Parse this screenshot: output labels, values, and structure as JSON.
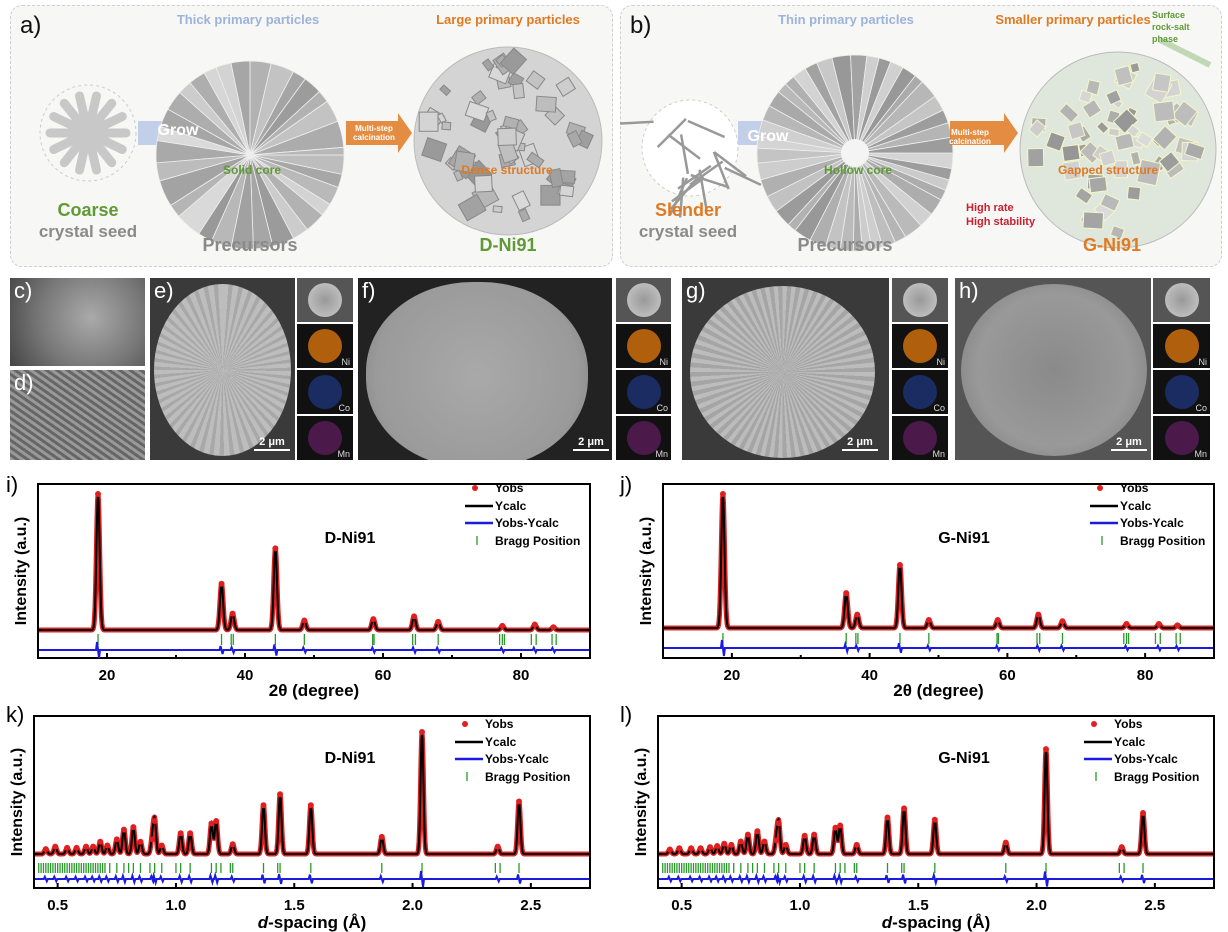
{
  "panel_a": {
    "label": "a)",
    "header_left": "Thick primary particles",
    "header_right": "Large primary particles",
    "grow": "Grow",
    "calcination": "Multi-step calcination",
    "core": "Solid core",
    "structure": "Dense structure",
    "seed_adj": "Coarse",
    "seed_noun": "crystal seed",
    "precursors": "Precursors",
    "product": "D-Ni91"
  },
  "panel_b": {
    "label": "b)",
    "header_left": "Thin primary particles",
    "header_right": "Smaller primary particles",
    "surface_note": "Surface rock-salt phase",
    "grow": "Grow",
    "calcination": "Multi-step calcination",
    "core": "Hollow core",
    "structure": "Gapped structure",
    "perf1": "High rate",
    "perf2": "High stability",
    "seed_adj": "Slender",
    "seed_noun": "crystal seed",
    "precursors": "Precursors",
    "product": "G-Ni91"
  },
  "colors": {
    "green": "#5f9a35",
    "orange": "#e07a22",
    "blue_light": "#9db3da",
    "gray": "#8a8a8a",
    "red": "#c8202e",
    "yobs": "#e02020",
    "ycalc": "#000000",
    "diff": "#1a1ae0",
    "bragg": "#2a9a2a"
  },
  "sem": {
    "c": {
      "label": "c)"
    },
    "d": {
      "label": "d)"
    },
    "e": {
      "label": "e)",
      "scale": "2 μm"
    },
    "f": {
      "label": "f)",
      "scale": "2 μm"
    },
    "g": {
      "label": "g)",
      "scale": "2 μm"
    },
    "h": {
      "label": "h)",
      "scale": "2 μm"
    },
    "eds_elements": [
      "Ni",
      "Co",
      "Mn"
    ]
  },
  "legend": {
    "yobs": "Yobs",
    "ycalc": "Ycalc",
    "diff": "Yobs-Ycalc",
    "bragg": "Bragg Position"
  },
  "chart_data": [
    {
      "panel": "i)",
      "type": "line",
      "sample": "D-Ni91",
      "xlabel": "2θ (degree)",
      "ylabel": "Intensity (a.u.)",
      "xlim": [
        10,
        90
      ],
      "xticks": [
        20,
        40,
        60,
        80
      ],
      "minor_xticks": [
        30,
        50,
        70
      ],
      "peaks_x": [
        18.7,
        36.6,
        38.2,
        44.4,
        48.6,
        58.6,
        64.5,
        68.0,
        77.3,
        82.0,
        84.7
      ],
      "peaks_rel_intensity": [
        1.0,
        0.34,
        0.12,
        0.6,
        0.07,
        0.08,
        0.1,
        0.06,
        0.03,
        0.04,
        0.02
      ],
      "bragg_positions": [
        18.7,
        36.6,
        38.0,
        38.3,
        44.4,
        48.6,
        58.5,
        58.7,
        64.3,
        64.7,
        68.0,
        76.9,
        77.3,
        77.6,
        81.5,
        82.2,
        84.5,
        85.1
      ]
    },
    {
      "panel": "j)",
      "type": "line",
      "sample": "G-Ni91",
      "xlabel": "2θ (degree)",
      "ylabel": "Intensity (a.u.)",
      "xlim": [
        10,
        90
      ],
      "xticks": [
        20,
        40,
        60,
        80
      ],
      "minor_xticks": [
        30,
        50,
        70
      ],
      "peaks_x": [
        18.7,
        36.6,
        38.2,
        44.4,
        48.6,
        58.6,
        64.5,
        68.0,
        77.3,
        82.0,
        84.7
      ],
      "peaks_rel_intensity": [
        1.0,
        0.26,
        0.1,
        0.47,
        0.06,
        0.06,
        0.1,
        0.05,
        0.03,
        0.03,
        0.02
      ],
      "bragg_positions": [
        18.7,
        36.6,
        38.0,
        38.3,
        44.4,
        48.6,
        58.5,
        58.7,
        64.3,
        64.7,
        68.0,
        76.9,
        77.3,
        77.6,
        81.5,
        82.2,
        84.5,
        85.1
      ]
    },
    {
      "panel": "k)",
      "type": "line",
      "sample": "D-Ni91",
      "xlabel": "d-spacing (Å)",
      "ylabel": "Intensity (a.u.)",
      "xlim": [
        0.4,
        2.75
      ],
      "xticks": [
        0.5,
        1.0,
        1.5,
        2.0,
        2.5
      ],
      "peaks_x": [
        0.45,
        0.49,
        0.54,
        0.58,
        0.62,
        0.65,
        0.68,
        0.71,
        0.75,
        0.78,
        0.82,
        0.85,
        0.9,
        0.91,
        0.94,
        1.02,
        1.06,
        1.15,
        1.17,
        1.24,
        1.37,
        1.44,
        1.57,
        1.87,
        2.04,
        2.36,
        2.45
      ],
      "peaks_rel_intensity": [
        0.04,
        0.06,
        0.05,
        0.05,
        0.06,
        0.06,
        0.1,
        0.07,
        0.12,
        0.2,
        0.22,
        0.1,
        0.12,
        0.27,
        0.07,
        0.17,
        0.17,
        0.25,
        0.27,
        0.08,
        0.4,
        0.49,
        0.4,
        0.14,
        1.0,
        0.06,
        0.43
      ],
      "bragg_positions": [
        0.42,
        0.43,
        0.44,
        0.45,
        0.46,
        0.47,
        0.48,
        0.49,
        0.5,
        0.51,
        0.52,
        0.53,
        0.54,
        0.55,
        0.56,
        0.57,
        0.58,
        0.59,
        0.6,
        0.61,
        0.62,
        0.63,
        0.64,
        0.65,
        0.66,
        0.67,
        0.68,
        0.69,
        0.7,
        0.72,
        0.75,
        0.78,
        0.8,
        0.82,
        0.85,
        0.89,
        0.91,
        0.94,
        1.0,
        1.02,
        1.06,
        1.15,
        1.17,
        1.19,
        1.23,
        1.24,
        1.37,
        1.43,
        1.44,
        1.57,
        1.87,
        2.04,
        2.35,
        2.37,
        2.45
      ]
    },
    {
      "panel": "l)",
      "type": "line",
      "sample": "G-Ni91",
      "xlabel": "d-spacing (Å)",
      "ylabel": "Intensity (a.u.)",
      "xlim": [
        0.4,
        2.75
      ],
      "xticks": [
        0.5,
        1.0,
        1.5,
        2.0,
        2.5
      ],
      "peaks_x": [
        0.45,
        0.49,
        0.54,
        0.58,
        0.62,
        0.65,
        0.68,
        0.71,
        0.75,
        0.78,
        0.82,
        0.85,
        0.9,
        0.91,
        0.94,
        1.02,
        1.06,
        1.15,
        1.17,
        1.24,
        1.37,
        1.44,
        1.57,
        1.87,
        2.04,
        2.36,
        2.45
      ],
      "peaks_rel_intensity": [
        0.04,
        0.05,
        0.05,
        0.05,
        0.06,
        0.07,
        0.09,
        0.08,
        0.11,
        0.17,
        0.2,
        0.11,
        0.12,
        0.27,
        0.08,
        0.16,
        0.17,
        0.23,
        0.25,
        0.08,
        0.32,
        0.4,
        0.3,
        0.1,
        0.92,
        0.06,
        0.36
      ],
      "bragg_positions": [
        0.42,
        0.43,
        0.44,
        0.45,
        0.46,
        0.47,
        0.48,
        0.49,
        0.5,
        0.51,
        0.52,
        0.53,
        0.54,
        0.55,
        0.56,
        0.57,
        0.58,
        0.59,
        0.6,
        0.61,
        0.62,
        0.63,
        0.64,
        0.65,
        0.66,
        0.67,
        0.68,
        0.69,
        0.7,
        0.72,
        0.75,
        0.78,
        0.8,
        0.82,
        0.85,
        0.89,
        0.91,
        0.94,
        1.0,
        1.02,
        1.06,
        1.15,
        1.17,
        1.19,
        1.23,
        1.24,
        1.37,
        1.43,
        1.44,
        1.57,
        1.87,
        2.04,
        2.35,
        2.37,
        2.45
      ]
    }
  ]
}
